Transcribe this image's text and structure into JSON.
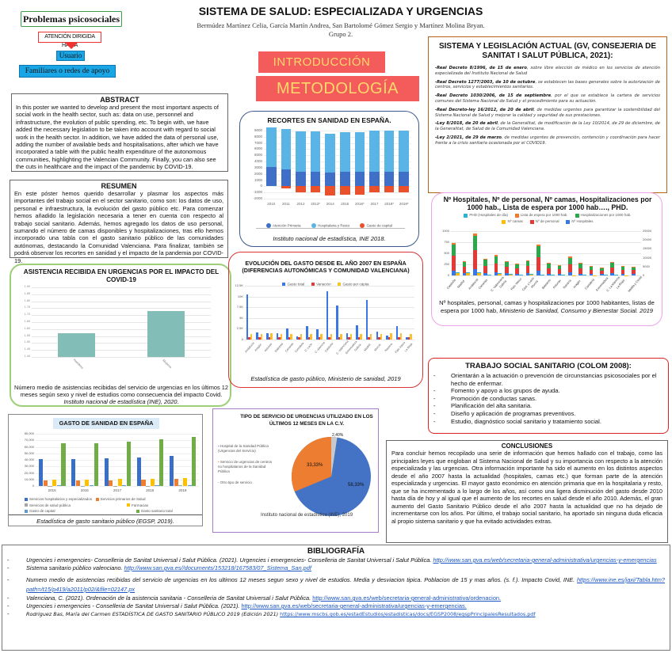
{
  "header": {
    "title": "SISTEMA DE SALUD: ESPECIALIZADA Y URGENCIAS",
    "authors": "Bermúdez Martínez Celia, García Martín Andrea, San Bartolomé Gómez Sergio y Martínez Molina Bryan.",
    "group": "Grupo 2."
  },
  "diagram": {
    "problems": "Problemas psicosociales",
    "attention": "ATENCIÓN DIRIGIDA HACIA",
    "user": "Usuario",
    "family": "Familiares o redes de apoyo"
  },
  "sections": {
    "intro": "INTRODUCCIÓN",
    "method": "METODOLOGÍA"
  },
  "abstract": {
    "title": "ABSTRACT",
    "text": "In this poster we wanted to develop and present the most important aspects of social work in the health sector, such as: data on use, personnel and infrastructure, the evolution of public spending, etc. To begin with, we have added the necessary legislation to be taken into account with regard to social work in the health sector. In addition, we have added the data of personal use, adding the number of available beds and hospitalisations, after which we have incorporated a table with the public health expenditure of the autonomous communities, highlighting the Valencian Community. Finally, you can also see the cuts in healthcare and the impact of the pandemic by COVID-19."
  },
  "resumen": {
    "title": "RESUMEN",
    "text": "En este póster hemos querido desarrollar y plasmar los aspectos más importantes del trabajo social en el sector sanitario, como son: los datos de uso, personal e infraestructura, la evolución del gasto público etc. Para comenzar hemos añadido la legislación necesaria a tener en cuenta con respecto al trabajo social sanitario. Además, hemos agregado los datos de uso personal, sumando el número de camas disponibles y hospitalizaciones, tras ello hemos incorporado una tabla con el gasto sanitario público de las comunidades autónomas, destacando la Comunidad Valenciana. Para finalizar, también se podrá observar los recortes en sanidad y el impacto de la pandemia por COVID-19."
  },
  "legislation": {
    "title": "SISTEMA Y LEGISLACIÓN ACTUAL (GV, CONSEJERIA DE SANITAT I SALUT PÚBLICA, 2021):",
    "items": [
      {
        "bold": "-Real Decreto 8/1996, de 15 de enero",
        "text": ", sobre libre elección de médico en los servicios de atención especializada del Instituto Nacional de Salud"
      },
      {
        "bold": "-Real Decreto 1277/2003, de 10 de octubre",
        "text": ", se establecen las bases generales sobre la autorización de centros, servicios y establecimientos sanitarios."
      },
      {
        "bold": "-Real Decreto 1030/2006, de 15 de septiembre",
        "text": ", por el que se establece la cartera de servicios comunes del Sistema Nacional de Salud y el procedimiento para su actuación."
      },
      {
        "bold": "-Real Decreto-ley 16/2012, de 20 de abril",
        "text": ", de medidas urgentes para garantizar la sostenibilidad del Sistema Nacional de Salud y mejorar la calidad y seguridad de sus prestaciones."
      },
      {
        "bold": "-Ley 8/2018, de 20 de abril",
        "text": ", de la Generalitat, de modificación de la Ley 10/2014, de 29 de diciembre, de la Generalitat, de Salud de la Comunidad Valenciana."
      },
      {
        "bold": "-Ley 2/2021, de 29 de marzo",
        "text": ", de medidas urgentes de prevención, contención y coordinación para hacer frente a la crisis sanitaria ocasionada por el COVID19."
      }
    ]
  },
  "recortes": {
    "caption": "Instituto nacional de estadística, INE 2018."
  },
  "covid": {
    "caption_line1": "Número medio de asistencias recibidas del servicio de urgencias en los últimos 12 meses según sexo y nivel de estudios como consecuencia del impacto Covid.",
    "caption_source": "Instituto nacional de estadística (INE), 2020."
  },
  "evol": {
    "caption": "Estadística de gasto público, Ministerio de sanidad, 2019"
  },
  "hosp": {
    "caption_line1": "Nº hospitales, personal, camas y hospitalizaciones por 1000 habitantes, listas de espera por 1000 hab, ",
    "caption_source": "Ministerio de Sanidad, Consumo y Bienestar Social. 2019"
  },
  "trabajo": {
    "title": "TRABAJO SOCIAL SANITARIO (COLOM 2008):",
    "items": [
      "Orientarán a la actuación o prevención de circunstancias psicosociales por el hecho de enfermar.",
      "Fomento y apoyo a los grupos de ayuda.",
      "Promoción de conductas sanas.",
      "Planificación del alta sanitaria.",
      "Diseño y aplicación de programas preventivos.",
      "Estudio, diagnóstico social sanitario y tratamiento social."
    ]
  },
  "gasto": {
    "caption": "Estadística de gasto sanitario público (EGSP, 2019)."
  },
  "pie": {
    "caption": "Instituto nacional de estadística (INE), 2019"
  },
  "conclusiones": {
    "title": "CONCLUSIONES",
    "text": "Para concluir hemos recopilado una serie de información que hemos hallado con el trabajo, como las principales leyes que engloban al Sistema Nacional de Salud y su importancia con respecto a la atención especializada y las urgencias. Otra información importante ha sido el aumento en los distintos aspectos desde el año 2007 hasta la actualidad (hospitales, camas etc.) que forman parte de la atención especializada y urgencias. El mayor gasto económico en atención primaria que en la hospitalaria y resto, que se ha incrementado a lo largo de los años, así como una ligera disminución del gasto desde 2010 hasta día de hoy y al igual que el aumento de los recortes en salud desde el año 2010. Además, el gran aumento del Gasto Sanitario Público desde el año 2007 hasta la actualidad que no ha dejado de incrementarse con los años. Por último, el trabajo social sanitario, ha aportado sin ninguna duda eficacia al propio sistema sanitario y que ha evitado  actividades extras."
  },
  "bibliografia": {
    "title": "BIBLIOGRAFÍA",
    "items": [
      {
        "text": "Urgencies i emergencies- Conselleria de Sanitat Universal i Salut Pública. (2021). Urgencies i emergencies- Conselleria de Sanitat Universal i Salut Pública. ",
        "link": "http://www.san.gva.es/web/secretaria-general-administrativa/urgencias-y-emergencias"
      },
      {
        "text": "Sistema sanitario público valenciano. ",
        "link": "http://www.san.gva.es//documents/153218/167583/07_Sistema_San.pdf"
      },
      {
        "text": "Numero medio de asistencias recibidas del servicio de urgencias en los ultimos 12 meses segun sexo y nivel de estudios. Media y desviacion tipica. Poblacion de 15 y mas años. (s. f.). Impacto Covid, INE. ",
        "link": "https://www.ine.es/jaxi/Tabla.htm?path=/t15/p419/a2011/p02/&file=02147.px"
      },
      {
        "text": "Valenciana, C. (2021). Ordenación de la asistencia sanitaria - Conselleria de Sanitat Universal i Salut Pública. ",
        "link": "http://www.san.gva.es/web/secretaria-general-administrativa/ordenacion."
      },
      {
        "text": "Urgencies i emergencies - Conselleria de Sanitat Universal i Salut Pública. (2021). ",
        "link": "http://www.san.gva.es/web/secretaria-general-administrativa/urgencias-y-emergencias."
      },
      {
        "text": "Rodriguez Bas, María del Carmen ESTADÍSTICA DE GASTO SANITARIO PÚBLICO 2019 (Edición 2021) ",
        "link": "https://www.mscbs.gob.es/estadEstudios/estadisticas/docs/EGSP2008/egspPrincipalesResultados.pdf"
      }
    ]
  },
  "chart_data": [
    {
      "type": "bar",
      "title": "RECORTES EN SANIDAD EN ESPAÑA.",
      "categories": [
        "2010",
        "2011",
        "2012",
        "2013*",
        "2014",
        "2015",
        "2016*",
        "2017",
        "2018*",
        "2019*"
      ],
      "series": [
        {
          "name": "Atención Primaria",
          "color": "#3f6fc7",
          "values": [
            3100,
            2700,
            2300,
            2300,
            2200,
            2300,
            2300,
            2400,
            2400,
            2400
          ]
        },
        {
          "name": "Hospitalaria y Resto",
          "color": "#5ab4e6",
          "values": [
            6400,
            6600,
            6600,
            6600,
            6300,
            6400,
            6400,
            6600,
            6600,
            6600
          ]
        },
        {
          "name": "Gasto de capital",
          "color": "#e8512b",
          "values": [
            0,
            -300,
            -1000,
            -1000,
            -1500,
            -1300,
            -1300,
            -1000,
            -1000,
            -1000
          ]
        }
      ],
      "yticks": [
        "9000",
        "8000",
        "7000",
        "6000",
        "5000",
        "4000",
        "3000",
        "2000",
        "1000",
        "0",
        "-1000",
        "-2000"
      ],
      "ylim": [
        -2000,
        9500
      ]
    },
    {
      "type": "bar",
      "title": "ASISTENCIA RECIBIDA EN URGENCIAS POR EL IMPACTO DEL COVID-19",
      "categories": [
        "Hombres",
        "Mujeres"
      ],
      "values": [
        1.57,
        1.73
      ],
      "yticks": [
        "1.90",
        "1.85",
        "1.80",
        "1.75",
        "1.70",
        "1.65",
        "1.60",
        "1.55",
        "1.50",
        "1.45",
        "1.40"
      ],
      "color": "#83bdb7",
      "ylim": [
        1.4,
        1.9
      ]
    },
    {
      "type": "bar",
      "title": "EVOLUCIÓN DEL GASTO DESDE EL AÑO 2007 EN ESPAÑA (DIFERENCIAS AUTONÓMICAS Y COMUNIDAD VALENCIANA)",
      "categories": [
        "Andalucía",
        "Aragón",
        "Asturias",
        "Baleares",
        "Canarias",
        "Cantabria",
        "C.-León",
        "C.-Mancha",
        "Cataluña",
        "C. Valenciana",
        "Extremadura",
        "Galicia",
        "Madrid",
        "Murcia",
        "Navarra",
        "País Vasco",
        "La Rioja"
      ],
      "series": [
        {
          "name": "Gasto total",
          "color": "#3a77e6",
          "values": [
            10500,
            1700,
            1400,
            1400,
            2600,
            700,
            3200,
            2400,
            11300,
            7900,
            1400,
            3400,
            9100,
            1900,
            900,
            3200,
            500
          ]
        },
        {
          "name": "Variación",
          "color": "#e53935",
          "values": [
            500,
            500,
            500,
            500,
            500,
            500,
            500,
            500,
            500,
            500,
            500,
            500,
            500,
            500,
            500,
            500,
            500
          ]
        },
        {
          "name": "Gasto per cápita",
          "color": "#fbc02d",
          "values": [
            1300,
            1300,
            1500,
            1300,
            1300,
            1300,
            1300,
            1300,
            1300,
            1300,
            1300,
            1300,
            1300,
            1300,
            1400,
            1500,
            1300
          ]
        }
      ],
      "yticks": [
        "12,5K",
        "10K",
        "7,5K",
        "5K",
        "2,5K",
        "0"
      ],
      "ylim": [
        0,
        12500
      ]
    },
    {
      "type": "bar",
      "title": "Nº Hospitales, Nº de personal, Nº camas, Hospitalizaciones por 1000 hab., Lista de espera por 1000 hab…., PHD.",
      "categories": [
        "Cataluña",
        "Madrid",
        "Andalucía",
        "Canarias",
        "C. Valenciana",
        "Galicia",
        "País Vasco",
        "Cast. y León",
        "Murcia",
        "Baleares",
        "Asturias",
        "Navarra",
        "Aragón",
        "Cantabria",
        "Extremadura",
        "C. La Mancha",
        "La Rioja",
        "Melilla y Ceuta"
      ],
      "series": [
        {
          "name": "PHD (Hospitales de día)",
          "color": "#2bb3d6"
        },
        {
          "name": "Lista de espera por 1000 hab.",
          "color": "#f07a2b"
        },
        {
          "name": "Hospitalizaciones por 1000 hab.",
          "color": "#2aa84a"
        },
        {
          "name": "Nº camas",
          "color": "#fbbd08"
        },
        {
          "name": "Nº de personal",
          "color": "#e53935"
        },
        {
          "name": "Nº Hospitales",
          "color": "#3a77e6"
        }
      ],
      "stacked_left": [
        730,
        330,
        940,
        370,
        460,
        330,
        260,
        345,
        690,
        280,
        240,
        420,
        280,
        220,
        180,
        310,
        220,
        200
      ],
      "stacked_right_camas": [
        1650,
        1500,
        1700,
        500,
        1150,
        750,
        550,
        700,
        300,
        250,
        250,
        150,
        350,
        150,
        300,
        500,
        100,
        0
      ],
      "yticks_left": [
        "1000",
        "750",
        "500",
        "250",
        "0"
      ],
      "yticks_right": [
        "25000",
        "20000",
        "15000",
        "10000",
        "5000",
        "0"
      ]
    },
    {
      "type": "bar",
      "title": "GASTO DE SANIDAD EN ESPAÑA",
      "categories": [
        "2015",
        "2016",
        "2017",
        "2018",
        "2019"
      ],
      "series": [
        {
          "name": "Servicios hospitalarios y especializados",
          "color": "#3a6fc7",
          "values": [
            41000,
            41000,
            42000,
            44000,
            45500
          ]
        },
        {
          "name": "Servicios primarios de Salud",
          "color": "#ed7d31",
          "values": [
            9000,
            9000,
            9000,
            10000,
            11000
          ]
        },
        {
          "name": "Servicios de salud pública",
          "color": "#a5a5a5",
          "values": [
            500,
            500,
            500,
            600,
            700
          ]
        },
        {
          "name": "Farmacias",
          "color": "#ffc000",
          "values": [
            10000,
            10000,
            11000,
            11000,
            12000
          ]
        },
        {
          "name": "Gasto de capital",
          "color": "#5b9bd5",
          "values": [
            1500,
            1500,
            1500,
            1600,
            1700
          ]
        },
        {
          "name": "Gasto sanitario total",
          "color": "#70ad47",
          "values": [
            65000,
            66000,
            68000,
            71000,
            75000
          ]
        }
      ],
      "yticks": [
        "80,000",
        "70,000",
        "60,000",
        "50,000",
        "40,000",
        "30,000",
        "20,000",
        "10,000",
        "0"
      ],
      "ylim": [
        0,
        80000
      ]
    },
    {
      "type": "pie",
      "title": "TIPO DE SERVICIO DE URGENCIAS UTILIZADO EN LOS ÚLTIMOS 12 MESES EN LA C.V.",
      "labels": [
        "Hospital de la Sanidad Pública (Urgencias del Servicio)",
        "Servicio de urgencias de centros no hospitalarios de la Sanidad Pública",
        "Otro tipo de servicio"
      ],
      "values": [
        58.33,
        33.33,
        2.4
      ],
      "colors": [
        "#4472c4",
        "#ed7d31",
        "#c9c9c9"
      ],
      "value_labels": [
        "58,33%",
        "33,33%",
        "2,40%"
      ]
    }
  ]
}
